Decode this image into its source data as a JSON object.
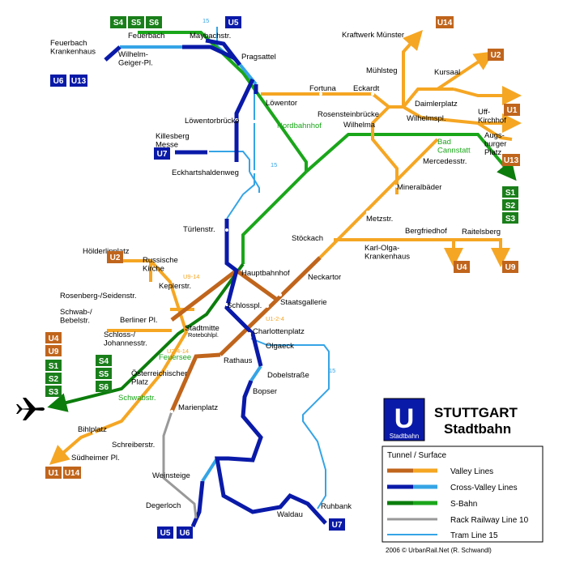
{
  "title": {
    "line1": "STUTTGART",
    "line2": "Stadtbahn",
    "logo_letter": "U",
    "logo_text": "Stadtbahn"
  },
  "legend": {
    "header": "Tunnel / Surface",
    "items": [
      {
        "label": "Valley Lines",
        "tunnel": "#c0651c",
        "surface": "#f5a623"
      },
      {
        "label": "Cross-Valley Lines",
        "tunnel": "#0a1aa8",
        "surface": "#35a4e6"
      },
      {
        "label": "S-Bahn",
        "tunnel": "#0c7d0c",
        "surface": "#1aa61a"
      },
      {
        "label": "Rack Railway Line 10",
        "tunnel": "#999999",
        "surface": "#999999"
      },
      {
        "label": "Tram Line 15",
        "tunnel": "#35a4e6",
        "surface": "#35a4e6"
      }
    ]
  },
  "credit": "2006 © UrbanRail.Net (R. Schwandl)",
  "colors": {
    "valley_tunnel": "#c0651c",
    "valley": "#f5a623",
    "cross_tunnel": "#0a1aa8",
    "cross": "#35a4e6",
    "sbahn_tunnel": "#0c7d0c",
    "sbahn": "#1aa61a",
    "rack": "#999999",
    "u_blue": "#0a1aa8"
  },
  "stations": {
    "feuerbach_kh": "Feuerbach\nKrankenhaus",
    "feuerbach": "Feuerbach",
    "maybachstr": "Maybachstr.",
    "wilhelm_geiger": "Wilhelm-\nGeiger-Pl.",
    "pragsattel": "Pragsattel",
    "kraftwerk": "Kraftwerk Münster",
    "muhlsteg": "Mühlsteg",
    "kursaal": "Kursaal",
    "fortuna": "Fortuna",
    "eckardt": "Eckardt",
    "lowentor": "Löwentor",
    "daimlerplatz": "Daimlerplatz",
    "rosensteinbrucke": "Rosensteinbrücke",
    "wilhelma": "Wilhelma",
    "wilhelmspl": "Wilhelmspl.",
    "uff_kirchhof": "Uff-\nKirchhof",
    "augsburger": "Augs-\nburger\nPlatz",
    "lowentorbrucke": "Löwentorbrücke",
    "nordbahnhof": "Nordbahnhof",
    "bad_cannstatt": "Bad\nCannstatt",
    "mercedesstr": "Mercedesstr.",
    "killesberg": "Killesberg\nMesse",
    "eckhartshaldenweg": "Eckhartshaldenweg",
    "mineralbader": "Mineralbäder",
    "turlenstr": "Türlenstr.",
    "metzstr": "Metzstr.",
    "stockach": "Stöckach",
    "bergfriedhof": "Bergfriedhof",
    "raitelsberg": "Raitelsberg",
    "karl_olga": "Karl-Olga-\nKrankenhaus",
    "russische_kirche": "Russische\nKirche",
    "holderlinplatz": "Hölderlinplatz",
    "hauptbahnhof": "Hauptbahnhof",
    "neckartor": "Neckartor",
    "keplerstr": "Keplerstr.",
    "rosenberg": "Rosenberg-/Seidenstr.",
    "staatsgallerie": "Staatsgallerie",
    "schlosspl": "Schlosspl.",
    "schwab": "Schwab-/\nBebelstr.",
    "berliner_pl": "Berliner Pl.",
    "stadtmitte": "Stadtmitte",
    "rotebuhlpl": "Rotebühlpl.",
    "charlottenplatz": "Charlottenplatz",
    "schloss_johannes": "Schloss-/\nJohannesstr.",
    "olgaeck": "Olgaeck",
    "feuersee": "Feuersee",
    "rathaus": "Rathaus",
    "osterreichischer": "Österreichischer\nPlatz",
    "dobelstrasse": "Dobelstraße",
    "schwabstr": "Schwabstr.",
    "bopser": "Bopser",
    "marienplatz": "Marienplatz",
    "bihlplatz": "Bihlplatz",
    "schreiberstr": "Schreiberstr.",
    "sudheimer": "Südheimer Pl.",
    "weinsteige": "Weinsteige",
    "degerloch": "Degerloch",
    "waldau": "Waldau",
    "ruhbank": "Ruhbank"
  },
  "line_notes": {
    "u9_14": "U9-14",
    "u1_2_4": "U1-2-4",
    "u2_4_14": "U2-4-14",
    "tram15_top": "15",
    "tram15_mid": "15",
    "tram15_right": "15"
  },
  "badges": {
    "s4": "S4",
    "s5": "S5",
    "s6": "S6",
    "u5": "U5",
    "u6": "U6",
    "u13": "U13",
    "u7": "U7",
    "u14": "U14",
    "u2": "U2",
    "u1": "U1",
    "s1": "S1",
    "s2": "S2",
    "s3": "S3",
    "u4": "U4",
    "u9": "U9"
  }
}
